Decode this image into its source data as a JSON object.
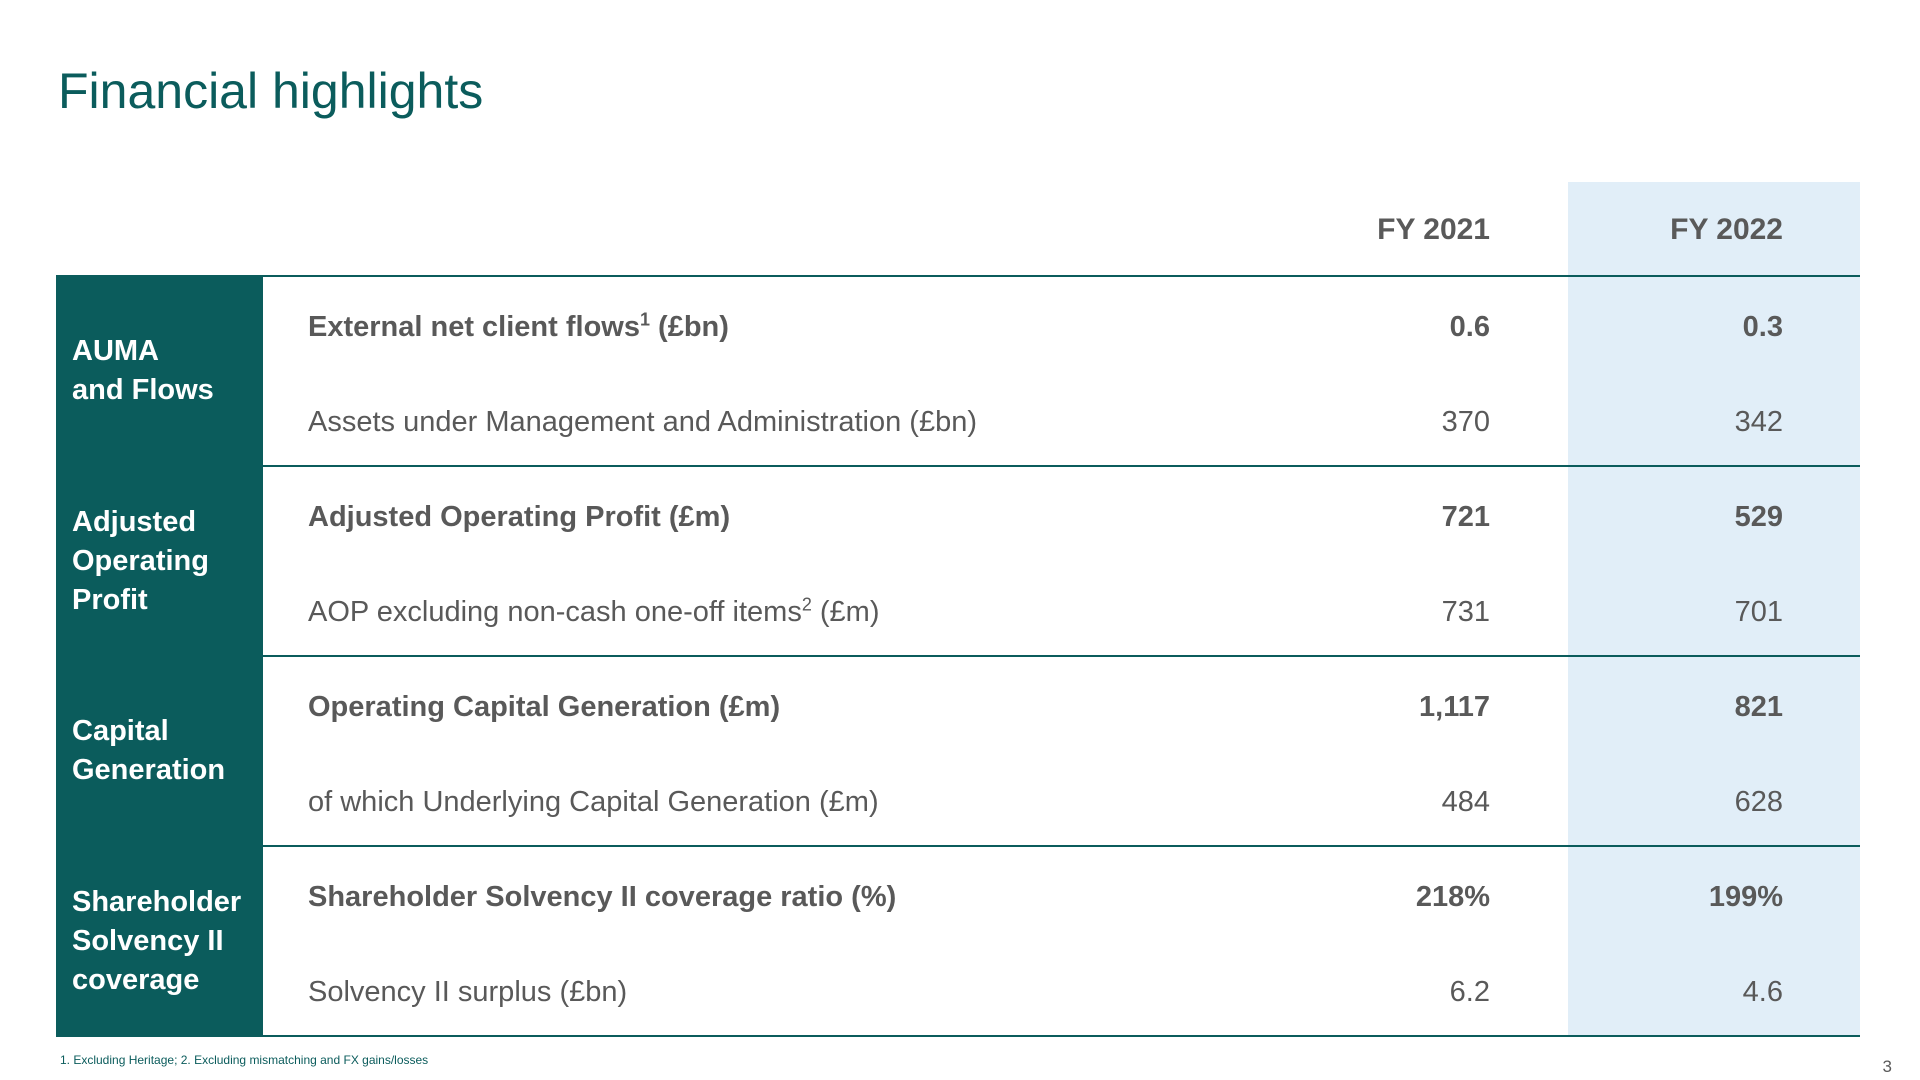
{
  "title": "Financial highlights",
  "columns": {
    "fy2021": "FY 2021",
    "fy2022": "FY 2022"
  },
  "sections": [
    {
      "label_lines": [
        "AUMA",
        "and Flows"
      ],
      "primary": {
        "metric": "External net client flows",
        "sup": "1",
        "unit": " (£bn)",
        "fy2021": "0.6",
        "fy2022": "0.3"
      },
      "secondary": {
        "metric": "Assets under Management and Administration (£bn)",
        "sup": "",
        "unit": "",
        "fy2021": "370",
        "fy2022": "342"
      }
    },
    {
      "label_lines": [
        "Adjusted",
        "Operating",
        "Profit"
      ],
      "primary": {
        "metric": "Adjusted Operating Profit (£m)",
        "sup": "",
        "unit": "",
        "fy2021": "721",
        "fy2022": "529"
      },
      "secondary": {
        "metric": "AOP excluding non-cash one-off items",
        "sup": "2",
        "unit": " (£m)",
        "fy2021": "731",
        "fy2022": "701"
      }
    },
    {
      "label_lines": [
        "Capital",
        "Generation"
      ],
      "primary": {
        "metric": "Operating Capital Generation (£m)",
        "sup": "",
        "unit": "",
        "fy2021": "1,117",
        "fy2022": "821"
      },
      "secondary": {
        "metric": "of which Underlying Capital Generation (£m)",
        "sup": "",
        "unit": "",
        "fy2021": "484",
        "fy2022": "628"
      }
    },
    {
      "label_lines": [
        "Shareholder",
        "Solvency II",
        "coverage"
      ],
      "primary": {
        "metric": "Shareholder Solvency II coverage ratio (%)",
        "sup": "",
        "unit": "",
        "fy2021": "218%",
        "fy2022": "199%"
      },
      "secondary": {
        "metric": "Solvency II surplus (£bn)",
        "sup": "",
        "unit": "",
        "fy2021": "6.2",
        "fy2022": "4.6"
      }
    }
  ],
  "footnote": "1. Excluding Heritage;  2. Excluding mismatching and FX gains/losses",
  "page_number": "3",
  "colors": {
    "brand_teal": "#0b5c5c",
    "highlight_band": "#e1eef8",
    "text_grey": "#595959"
  }
}
